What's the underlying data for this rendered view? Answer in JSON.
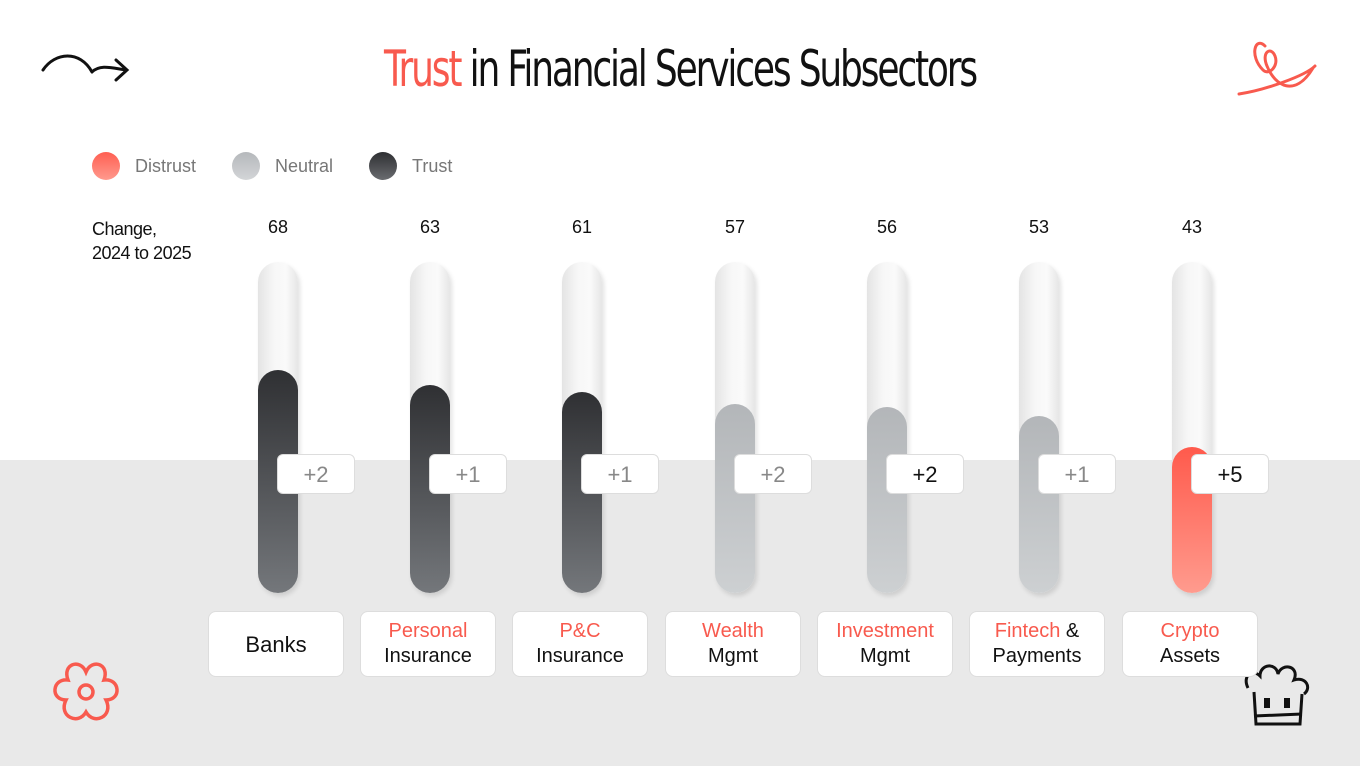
{
  "title": {
    "highlight": "Trust",
    "rest": " in Financial Services Subsectors"
  },
  "legend": [
    {
      "label": "Distrust",
      "color": "#ff6b5e"
    },
    {
      "label": "Neutral",
      "color": "#c2c5c8"
    },
    {
      "label": "Trust",
      "color": "#3a3b3e"
    }
  ],
  "chart_data": {
    "type": "bar",
    "change_header": "Change, 2024 to 2025",
    "change_header_lines": [
      "Change,",
      "2024 to 2025"
    ],
    "categories": [
      "Banks",
      "Personal Insurance",
      "P&C Insurance",
      "Wealth Mgmt",
      "Investment Mgmt",
      "Fintech & Payments",
      "Crypto Assets"
    ],
    "category_lines": [
      {
        "red": "",
        "black": "Banks"
      },
      {
        "red": "Personal",
        "black": "Insurance"
      },
      {
        "red": "P&C",
        "black": "Insurance"
      },
      {
        "red": "Wealth",
        "black": "Mgmt"
      },
      {
        "red": "Investment",
        "black": "Mgmt"
      },
      {
        "red": "Fintech",
        "black": " & Payments",
        "sep": " &"
      },
      {
        "red": "Crypto",
        "black": "Assets"
      }
    ],
    "values": [
      68,
      63,
      61,
      57,
      56,
      53,
      43
    ],
    "value_labels": [
      "68",
      "63",
      "61",
      "57",
      "56",
      "53",
      "43"
    ],
    "levels": [
      "Trust",
      "Trust",
      "Trust",
      "Neutral",
      "Neutral",
      "Neutral",
      "Distrust"
    ],
    "changes": [
      "+2",
      "+1",
      "+1",
      "+2",
      "+2",
      "+1",
      "+5"
    ],
    "change_emphasis": [
      false,
      false,
      false,
      false,
      true,
      false,
      true
    ]
  }
}
